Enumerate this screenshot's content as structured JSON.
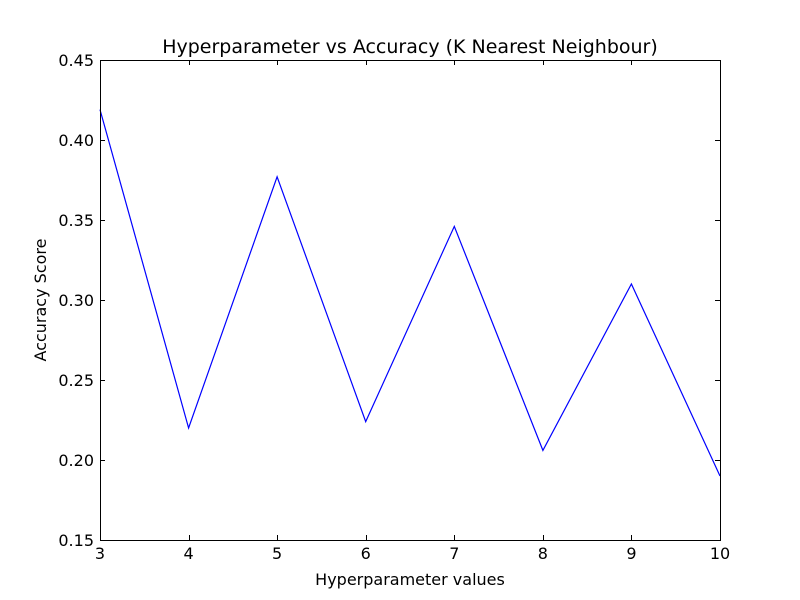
{
  "chart_data": {
    "type": "line",
    "title": "Hyperparameter vs Accuracy (K Nearest Neighbour)",
    "xlabel": "Hyperparameter values",
    "ylabel": "Accuracy Score",
    "xlim": [
      3,
      10
    ],
    "ylim": [
      0.15,
      0.45
    ],
    "xticks": [
      3,
      4,
      5,
      6,
      7,
      8,
      9,
      10
    ],
    "xtick_labels": [
      "3",
      "4",
      "5",
      "6",
      "7",
      "8",
      "9",
      "10"
    ],
    "yticks": [
      0.15,
      0.2,
      0.25,
      0.3,
      0.35,
      0.4,
      0.45
    ],
    "ytick_labels": [
      "0.15",
      "0.20",
      "0.25",
      "0.30",
      "0.35",
      "0.40",
      "0.45"
    ],
    "grid": false,
    "series": [
      {
        "color": "#0000ff",
        "x": [
          3,
          4,
          5,
          6,
          7,
          8,
          9,
          10
        ],
        "values": [
          0.419,
          0.22,
          0.377,
          0.224,
          0.346,
          0.206,
          0.31,
          0.19
        ]
      }
    ]
  }
}
